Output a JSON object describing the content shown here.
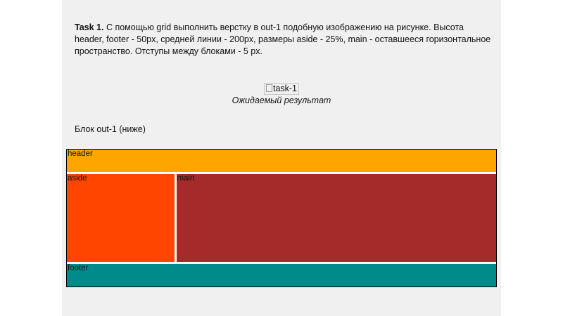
{
  "task": {
    "label": "Task 1.",
    "text": " С помощью grid выполнить верстку в out-1 подобную изображению на рисунке. Высота header, footer - 50px, средней линии - 200px, размеры aside - 25%, main - оставшееся горизонтальное пространство. Отступы между блоками - 5 px."
  },
  "figure": {
    "image_alt": "task-1",
    "caption": "Ожидаемый результат"
  },
  "block_label": "Блок out-1 (ниже)",
  "layout": {
    "header": "header",
    "aside": "aside",
    "main": "main",
    "footer": "footer"
  },
  "colors": {
    "header": "#ffa500",
    "aside": "#ff4500",
    "main": "#a52a2a",
    "footer": "#008b8b",
    "page_background": "#f0f0f0"
  }
}
